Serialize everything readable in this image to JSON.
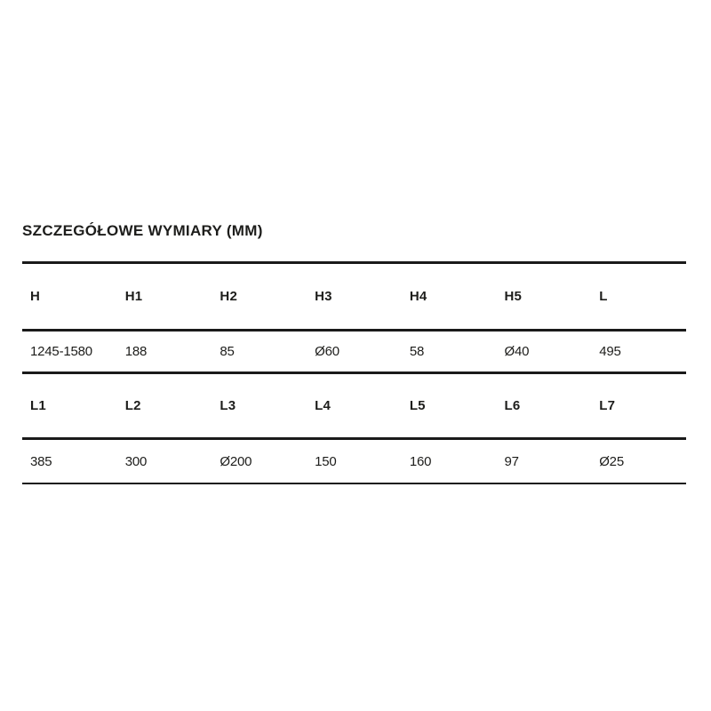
{
  "title": "SZCZEGÓŁOWE WYMIARY (MM)",
  "table": {
    "sections": [
      {
        "headers": [
          "H",
          "H1",
          "H2",
          "H3",
          "H4",
          "H5",
          "L"
        ],
        "values": [
          "1245-1580",
          "188",
          "85",
          "Ø60",
          "58",
          "Ø40",
          "495"
        ]
      },
      {
        "headers": [
          "L1",
          "L2",
          "L3",
          "L4",
          "L5",
          "L6",
          "L7"
        ],
        "values": [
          "385",
          "300",
          "Ø200",
          "150",
          "160",
          "97",
          "Ø25"
        ]
      }
    ]
  },
  "colors": {
    "text": "#1d1d1b",
    "rule": "#1a1a1a",
    "background": "#ffffff"
  }
}
